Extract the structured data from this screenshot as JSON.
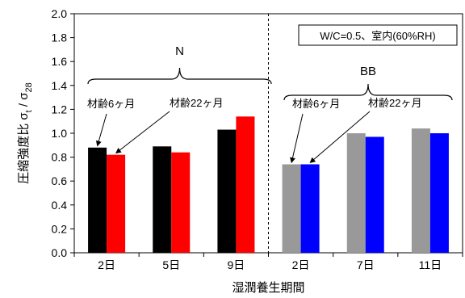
{
  "chart_data": {
    "type": "bar",
    "title": "",
    "xlabel": "湿潤養生期間",
    "ylabel": {
      "prefix": "圧縮強度比",
      "sigma": "σ",
      "sub_t": "t",
      "slash": " / ",
      "sub_28": "28"
    },
    "ylim": [
      0,
      2.0
    ],
    "yticks": [
      "0.0",
      "0.2",
      "0.4",
      "0.6",
      "0.8",
      "1.0",
      "1.2",
      "1.4",
      "1.6",
      "1.8",
      "2.0"
    ],
    "categories": [
      "2日",
      "5日",
      "9日",
      "2日",
      "7日",
      "11日"
    ],
    "groups": [
      {
        "label": "N",
        "categories": [
          0,
          1,
          2
        ]
      },
      {
        "label": "BB",
        "categories": [
          3,
          4,
          5
        ]
      }
    ],
    "series": [
      {
        "values": [
          0.88,
          0.89,
          1.03,
          0.74,
          1.0,
          1.04
        ],
        "colors": [
          "#000000",
          "#000000",
          "#000000",
          "#999999",
          "#999999",
          "#999999"
        ]
      },
      {
        "values": [
          0.82,
          0.84,
          1.14,
          0.74,
          0.97,
          1.0
        ],
        "colors": [
          "#ff0000",
          "#ff0000",
          "#ff0000",
          "#0000ff",
          "#0000ff",
          "#0000ff"
        ]
      }
    ],
    "legend_box": "W/C=0.5、室内(60%RH)",
    "annotations": [
      {
        "text": "材齢6ヶ月",
        "target_series": 0,
        "target_category": 0
      },
      {
        "text": "材齢22ヶ月",
        "target_series": 1,
        "target_category": 0
      },
      {
        "text": "材齢6ヶ月",
        "target_series": 0,
        "target_category": 3
      },
      {
        "text": "材齢22ヶ月",
        "target_series": 1,
        "target_category": 3
      }
    ],
    "grid": false,
    "divider_between": [
      2,
      3
    ]
  }
}
